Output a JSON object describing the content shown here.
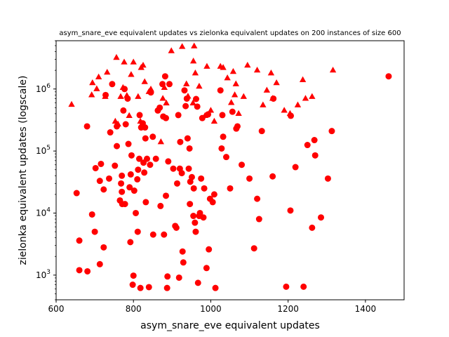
{
  "chart_data": {
    "type": "scatter",
    "title": "asym_snare_eve equivalent updates vs zielonka equivalent updates on 200 instances of size 600",
    "xlabel": "asym_snare_eve equivalent updates",
    "ylabel": "zielonka equivalent updates (logscale)",
    "xlim": [
      600,
      1500
    ],
    "ylim": [
      400,
      6000000
    ],
    "yscale": "log",
    "grid": false,
    "x_ticks": [
      600,
      800,
      1000,
      1200,
      1400
    ],
    "y_ticks": [
      {
        "value": 1000,
        "label": "10^3"
      },
      {
        "value": 10000,
        "label": "10^4"
      },
      {
        "value": 100000,
        "label": "10^5"
      },
      {
        "value": 1000000,
        "label": "10^6"
      }
    ],
    "colors": {
      "marker": "#ff0000"
    },
    "series": [
      {
        "marker": "circle",
        "points": [
          [
            653,
            21000
          ],
          [
            660,
            3600
          ],
          [
            660,
            1200
          ],
          [
            680,
            250000
          ],
          [
            681,
            1150
          ],
          [
            693,
            9500
          ],
          [
            700,
            5000
          ],
          [
            702,
            53000
          ],
          [
            713,
            33000
          ],
          [
            713,
            1500
          ],
          [
            716,
            62000
          ],
          [
            723,
            24000
          ],
          [
            723,
            2800
          ],
          [
            728,
            800000
          ],
          [
            737,
            36000
          ],
          [
            740,
            200000
          ],
          [
            745,
            1200000
          ],
          [
            752,
            58000
          ],
          [
            757,
            250000
          ],
          [
            757,
            120000
          ],
          [
            765,
            16000
          ],
          [
            768,
            30000
          ],
          [
            770,
            22000
          ],
          [
            770,
            40000
          ],
          [
            771,
            14000
          ],
          [
            774,
            450000
          ],
          [
            777,
            1000000
          ],
          [
            778,
            14000
          ],
          [
            780,
            270000
          ],
          [
            785,
            700000
          ],
          [
            787,
            130000
          ],
          [
            790,
            26000
          ],
          [
            792,
            3400
          ],
          [
            793,
            42000
          ],
          [
            795,
            85000
          ],
          [
            798,
            700
          ],
          [
            800,
            980
          ],
          [
            802,
            23000
          ],
          [
            806,
            10000
          ],
          [
            810,
            35000
          ],
          [
            811,
            5000
          ],
          [
            812,
            50000
          ],
          [
            815,
            75000
          ],
          [
            816,
            380000
          ],
          [
            818,
            620
          ],
          [
            820,
            240000
          ],
          [
            824,
            280000
          ],
          [
            826,
            65000
          ],
          [
            828,
            45000
          ],
          [
            830,
            240000
          ],
          [
            831,
            160000
          ],
          [
            832,
            15000
          ],
          [
            835,
            75000
          ],
          [
            840,
            640
          ],
          [
            843,
            60000
          ],
          [
            845,
            880000
          ],
          [
            850,
            170000
          ],
          [
            851,
            4500
          ],
          [
            858,
            75000
          ],
          [
            863,
            450000
          ],
          [
            868,
            500000
          ],
          [
            870,
            13000
          ],
          [
            875,
            1200000
          ],
          [
            877,
            360000
          ],
          [
            879,
            4500
          ],
          [
            882,
            1600000
          ],
          [
            884,
            340000
          ],
          [
            884,
            19000
          ],
          [
            887,
            620
          ],
          [
            888,
            950
          ],
          [
            890,
            68000
          ],
          [
            893,
            1200000
          ],
          [
            903,
            52000
          ],
          [
            908,
            6200
          ],
          [
            911,
            5800
          ],
          [
            913,
            30000
          ],
          [
            916,
            380000
          ],
          [
            918,
            910
          ],
          [
            920,
            52000
          ],
          [
            921,
            140000
          ],
          [
            925,
            44000
          ],
          [
            927,
            2400
          ],
          [
            929,
            1600
          ],
          [
            932,
            950000
          ],
          [
            935,
            530000
          ],
          [
            938,
            700000
          ],
          [
            940,
            160000
          ],
          [
            943,
            52000
          ],
          [
            945,
            110000
          ],
          [
            946,
            14000
          ],
          [
            947,
            32000
          ],
          [
            951,
            38000
          ],
          [
            955,
            9000
          ],
          [
            956,
            25000
          ],
          [
            959,
            7000
          ],
          [
            961,
            5000
          ],
          [
            962,
            690000
          ],
          [
            965,
            520000
          ],
          [
            967,
            750
          ],
          [
            970,
            9000
          ],
          [
            972,
            10000
          ],
          [
            975,
            36000
          ],
          [
            978,
            340000
          ],
          [
            981,
            8500
          ],
          [
            983,
            25000
          ],
          [
            989,
            1300
          ],
          [
            993,
            390000
          ],
          [
            995,
            2600
          ],
          [
            998,
            17000
          ],
          [
            1005,
            15000
          ],
          [
            1009,
            20000
          ],
          [
            1012,
            620
          ],
          [
            1025,
            950000
          ],
          [
            1028,
            110000
          ],
          [
            1030,
            380000
          ],
          [
            1032,
            170000
          ],
          [
            1040,
            80000
          ],
          [
            1050,
            25000
          ],
          [
            1056,
            430000
          ],
          [
            1066,
            230000
          ],
          [
            1069,
            250000
          ],
          [
            1080,
            60000
          ],
          [
            1100,
            36000
          ],
          [
            1112,
            2700
          ],
          [
            1120,
            17000
          ],
          [
            1125,
            8000
          ],
          [
            1132,
            210000
          ],
          [
            1160,
            39000
          ],
          [
            1162,
            700000
          ],
          [
            1195,
            650
          ],
          [
            1206,
            11000
          ],
          [
            1207,
            370000
          ],
          [
            1219,
            55000
          ],
          [
            1240,
            650
          ],
          [
            1250,
            125000
          ],
          [
            1262,
            5800
          ],
          [
            1268,
            150000
          ],
          [
            1270,
            85000
          ],
          [
            1285,
            8500
          ],
          [
            1303,
            36000
          ],
          [
            1313,
            210000
          ],
          [
            1460,
            1600000
          ]
        ]
      },
      {
        "marker": "triangle",
        "points": [
          [
            640,
            560000
          ],
          [
            692,
            800000
          ],
          [
            694,
            1250000
          ],
          [
            705,
            1000000
          ],
          [
            710,
            1550000
          ],
          [
            727,
            750000
          ],
          [
            732,
            1850000
          ],
          [
            753,
            300000
          ],
          [
            756,
            3200000
          ],
          [
            760,
            270000
          ],
          [
            767,
            750000
          ],
          [
            773,
            1050000
          ],
          [
            776,
            2700000
          ],
          [
            783,
            780000
          ],
          [
            789,
            370000
          ],
          [
            794,
            1700000
          ],
          [
            800,
            2700000
          ],
          [
            812,
            750000
          ],
          [
            818,
            300000
          ],
          [
            820,
            2200000
          ],
          [
            825,
            2400000
          ],
          [
            829,
            1300000
          ],
          [
            840,
            900000
          ],
          [
            845,
            990000
          ],
          [
            871,
            140000
          ],
          [
            876,
            700000
          ],
          [
            880,
            1050000
          ],
          [
            885,
            590000
          ],
          [
            898,
            4100000
          ],
          [
            926,
            4800000
          ],
          [
            937,
            1200000
          ],
          [
            941,
            760000
          ],
          [
            954,
            590000
          ],
          [
            955,
            2800000
          ],
          [
            957,
            4900000
          ],
          [
            960,
            1800000
          ],
          [
            970,
            1100000
          ],
          [
            985,
            370000
          ],
          [
            990,
            2300000
          ],
          [
            1000,
            450000
          ],
          [
            1009,
            300000
          ],
          [
            1025,
            2300000
          ],
          [
            1032,
            2200000
          ],
          [
            1043,
            1500000
          ],
          [
            1053,
            600000
          ],
          [
            1058,
            1900000
          ],
          [
            1062,
            800000
          ],
          [
            1065,
            1200000
          ],
          [
            1072,
            400000
          ],
          [
            1085,
            750000
          ],
          [
            1095,
            2400000
          ],
          [
            1120,
            2000000
          ],
          [
            1135,
            550000
          ],
          [
            1145,
            950000
          ],
          [
            1156,
            1800000
          ],
          [
            1160,
            700000
          ],
          [
            1170,
            1250000
          ],
          [
            1190,
            450000
          ],
          [
            1205,
            400000
          ],
          [
            1225,
            550000
          ],
          [
            1238,
            1400000
          ],
          [
            1245,
            700000
          ],
          [
            1262,
            750000
          ],
          [
            1316,
            2000000
          ]
        ]
      }
    ]
  }
}
